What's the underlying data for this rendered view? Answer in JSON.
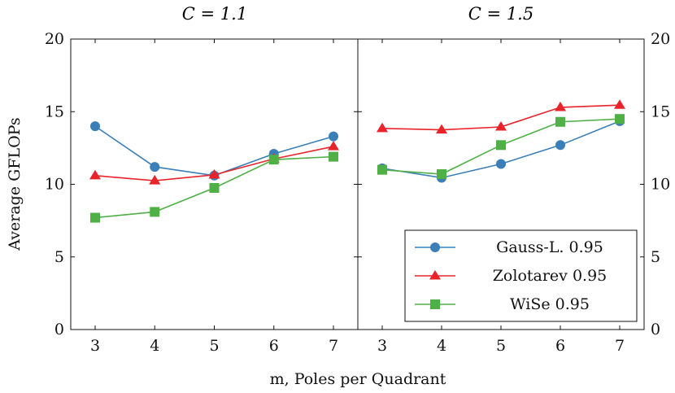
{
  "ylabel": "Average GFLOPs",
  "xlabel": "m, Poles per Quadrant",
  "chart_data": [
    {
      "type": "line",
      "title": "C = 1.1",
      "xlabel": "m, Poles per Quadrant",
      "ylabel": "Average GFLOPs",
      "x": [
        3,
        4,
        5,
        6,
        7
      ],
      "ylim": [
        0,
        20
      ],
      "yticks": [
        0,
        5,
        10,
        15,
        20
      ],
      "grid": false,
      "series": [
        {
          "name": "Gauss-L. 0.95",
          "color": "#3a7fb8",
          "marker": "circle",
          "values": [
            14.0,
            11.2,
            10.6,
            12.1,
            13.3
          ]
        },
        {
          "name": "Zolotarev 0.95",
          "color": "#e8232a",
          "marker": "triangle",
          "values": [
            10.6,
            10.25,
            10.65,
            11.75,
            12.6
          ]
        },
        {
          "name": "WiSe 0.95",
          "color": "#4fb046",
          "marker": "square",
          "values": [
            7.7,
            8.1,
            9.75,
            11.7,
            11.9
          ]
        }
      ]
    },
    {
      "type": "line",
      "title": "C = 1.5",
      "xlabel": "m, Poles per Quadrant",
      "ylabel": "Average GFLOPs",
      "x": [
        3,
        4,
        5,
        6,
        7
      ],
      "ylim": [
        0,
        20
      ],
      "yticks": [
        0,
        5,
        10,
        15,
        20
      ],
      "grid": false,
      "legend": "bottom-right",
      "series": [
        {
          "name": "Gauss-L. 0.95",
          "color": "#3a7fb8",
          "marker": "circle",
          "values": [
            11.1,
            10.45,
            11.4,
            12.7,
            14.35
          ]
        },
        {
          "name": "Zolotarev 0.95",
          "color": "#e8232a",
          "marker": "triangle",
          "values": [
            13.85,
            13.75,
            13.95,
            15.3,
            15.45
          ]
        },
        {
          "name": "WiSe 0.95",
          "color": "#4fb046",
          "marker": "square",
          "values": [
            11.0,
            10.7,
            12.7,
            14.3,
            14.5
          ]
        }
      ]
    }
  ]
}
